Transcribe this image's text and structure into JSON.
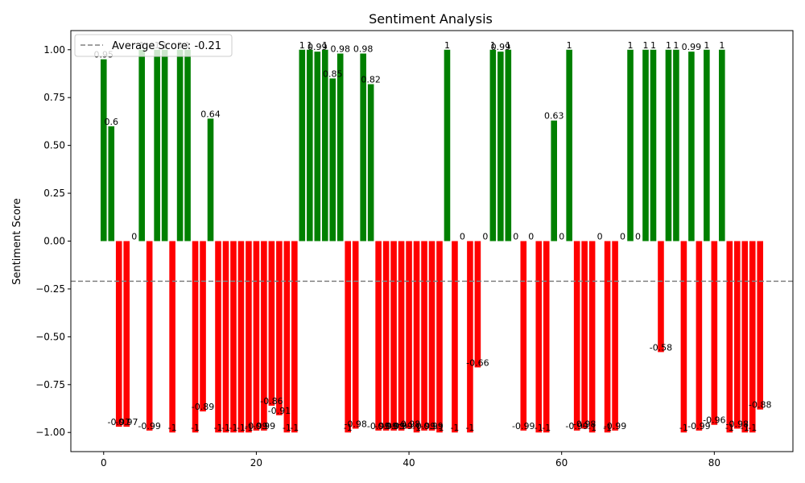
{
  "chart_data": {
    "type": "bar",
    "title": "Sentiment Analysis",
    "xlabel": "",
    "ylabel": "Sentiment Score",
    "xlim": [
      -4.3,
      90.3
    ],
    "ylim": [
      -1.1,
      1.1
    ],
    "xticks": [
      0,
      20,
      40,
      60,
      80
    ],
    "yticks": [
      "1.00",
      "0.75",
      "0.50",
      "0.25",
      "0.00",
      "−0.25",
      "−0.50",
      "−0.75",
      "−1.00"
    ],
    "ytick_values": [
      1.0,
      0.75,
      0.5,
      0.25,
      0.0,
      -0.25,
      -0.5,
      -0.75,
      -1.0
    ],
    "positive_color": "#008000",
    "negative_color": "#ff0000",
    "average_line": {
      "label": "Average Score: -0.21",
      "value": -0.21,
      "color": "#808080"
    },
    "legend_position": "top-left",
    "values": [
      0.95,
      0.6,
      -0.97,
      -0.97,
      0.0,
      1.0,
      -0.99,
      1.0,
      1.0,
      -1.0,
      1.0,
      1.0,
      -1.0,
      -0.89,
      0.64,
      -1.0,
      -1.0,
      -1.0,
      -1.0,
      -1.0,
      -0.99,
      -0.99,
      -0.86,
      -0.91,
      -1.0,
      -1.0,
      1.0,
      1.0,
      0.99,
      1.0,
      0.85,
      0.98,
      -1.0,
      -0.98,
      0.98,
      0.82,
      -0.99,
      -0.99,
      -0.99,
      -0.99,
      -0.98,
      -1.0,
      -0.99,
      -0.99,
      -1.0,
      1.0,
      -1.0,
      0.0,
      -1.0,
      -0.66,
      0.0,
      1.0,
      0.99,
      1.0,
      0.0,
      -0.99,
      0.0,
      -1.0,
      -1.0,
      0.63,
      0.0,
      1.0,
      -0.99,
      -0.98,
      -1.0,
      0.0,
      -1.0,
      -0.99,
      0.0,
      1.0,
      0.0,
      1.0,
      1.0,
      -0.58,
      1.0,
      1.0,
      -1.0,
      0.99,
      -0.99,
      1.0,
      -0.96,
      1.0,
      -1.0,
      -0.98,
      -1.0,
      -1.0,
      -0.88
    ]
  }
}
